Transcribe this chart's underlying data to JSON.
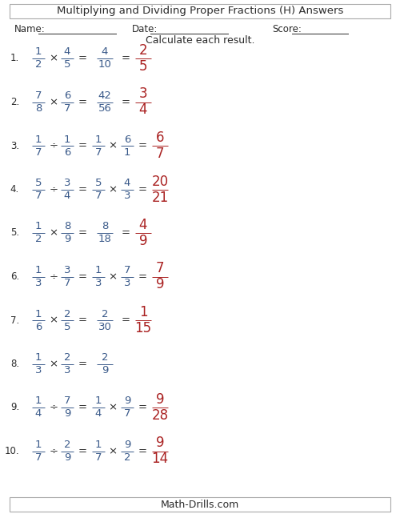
{
  "title": "Multiplying and Dividing Proper Fractions (H) Answers",
  "subtitle": "Calculate each result.",
  "name_label": "Name:",
  "date_label": "Date:",
  "score_label": "Score:",
  "footer": "Math-Drills.com",
  "problems": [
    {
      "num": "1.",
      "op": "×",
      "frac1": [
        "1",
        "2"
      ],
      "frac2": [
        "4",
        "5"
      ],
      "show_recip": false,
      "recip": null,
      "unsimplified": [
        "4",
        "10"
      ],
      "simplified": [
        "2",
        "5"
      ]
    },
    {
      "num": "2.",
      "op": "×",
      "frac1": [
        "7",
        "8"
      ],
      "frac2": [
        "6",
        "7"
      ],
      "show_recip": false,
      "recip": null,
      "unsimplified": [
        "42",
        "56"
      ],
      "simplified": [
        "3",
        "4"
      ]
    },
    {
      "num": "3.",
      "op": "÷",
      "frac1": [
        "1",
        "7"
      ],
      "frac2": [
        "1",
        "6"
      ],
      "show_recip": true,
      "recip": [
        [
          "1",
          "7"
        ],
        [
          "6",
          "1"
        ]
      ],
      "unsimplified": null,
      "simplified": [
        "6",
        "7"
      ]
    },
    {
      "num": "4.",
      "op": "÷",
      "frac1": [
        "5",
        "7"
      ],
      "frac2": [
        "3",
        "4"
      ],
      "show_recip": true,
      "recip": [
        [
          "5",
          "7"
        ],
        [
          "4",
          "3"
        ]
      ],
      "unsimplified": null,
      "simplified": [
        "20",
        "21"
      ]
    },
    {
      "num": "5.",
      "op": "×",
      "frac1": [
        "1",
        "2"
      ],
      "frac2": [
        "8",
        "9"
      ],
      "show_recip": false,
      "recip": null,
      "unsimplified": [
        "8",
        "18"
      ],
      "simplified": [
        "4",
        "9"
      ]
    },
    {
      "num": "6.",
      "op": "÷",
      "frac1": [
        "1",
        "3"
      ],
      "frac2": [
        "3",
        "7"
      ],
      "show_recip": true,
      "recip": [
        [
          "1",
          "3"
        ],
        [
          "7",
          "3"
        ]
      ],
      "unsimplified": null,
      "simplified": [
        "7",
        "9"
      ]
    },
    {
      "num": "7.",
      "op": "×",
      "frac1": [
        "1",
        "6"
      ],
      "frac2": [
        "2",
        "5"
      ],
      "show_recip": false,
      "recip": null,
      "unsimplified": [
        "2",
        "30"
      ],
      "simplified": [
        "1",
        "15"
      ]
    },
    {
      "num": "8.",
      "op": "×",
      "frac1": [
        "1",
        "3"
      ],
      "frac2": [
        "2",
        "3"
      ],
      "show_recip": false,
      "recip": null,
      "unsimplified": [
        "2",
        "9"
      ],
      "simplified": null
    },
    {
      "num": "9.",
      "op": "÷",
      "frac1": [
        "1",
        "4"
      ],
      "frac2": [
        "7",
        "9"
      ],
      "show_recip": true,
      "recip": [
        [
          "1",
          "4"
        ],
        [
          "9",
          "7"
        ]
      ],
      "unsimplified": null,
      "simplified": [
        "9",
        "28"
      ]
    },
    {
      "num": "10.",
      "op": "÷",
      "frac1": [
        "1",
        "7"
      ],
      "frac2": [
        "2",
        "9"
      ],
      "show_recip": true,
      "recip": [
        [
          "1",
          "7"
        ],
        [
          "9",
          "2"
        ]
      ],
      "unsimplified": null,
      "simplified": [
        "9",
        "14"
      ]
    }
  ],
  "color_black": "#2b2b2b",
  "color_blue": "#3a5a8a",
  "color_red": "#aa2222",
  "bg_color": "#ffffff",
  "border_color": "#aaaaaa",
  "fig_width": 5.0,
  "fig_height": 6.47,
  "dpi": 100
}
